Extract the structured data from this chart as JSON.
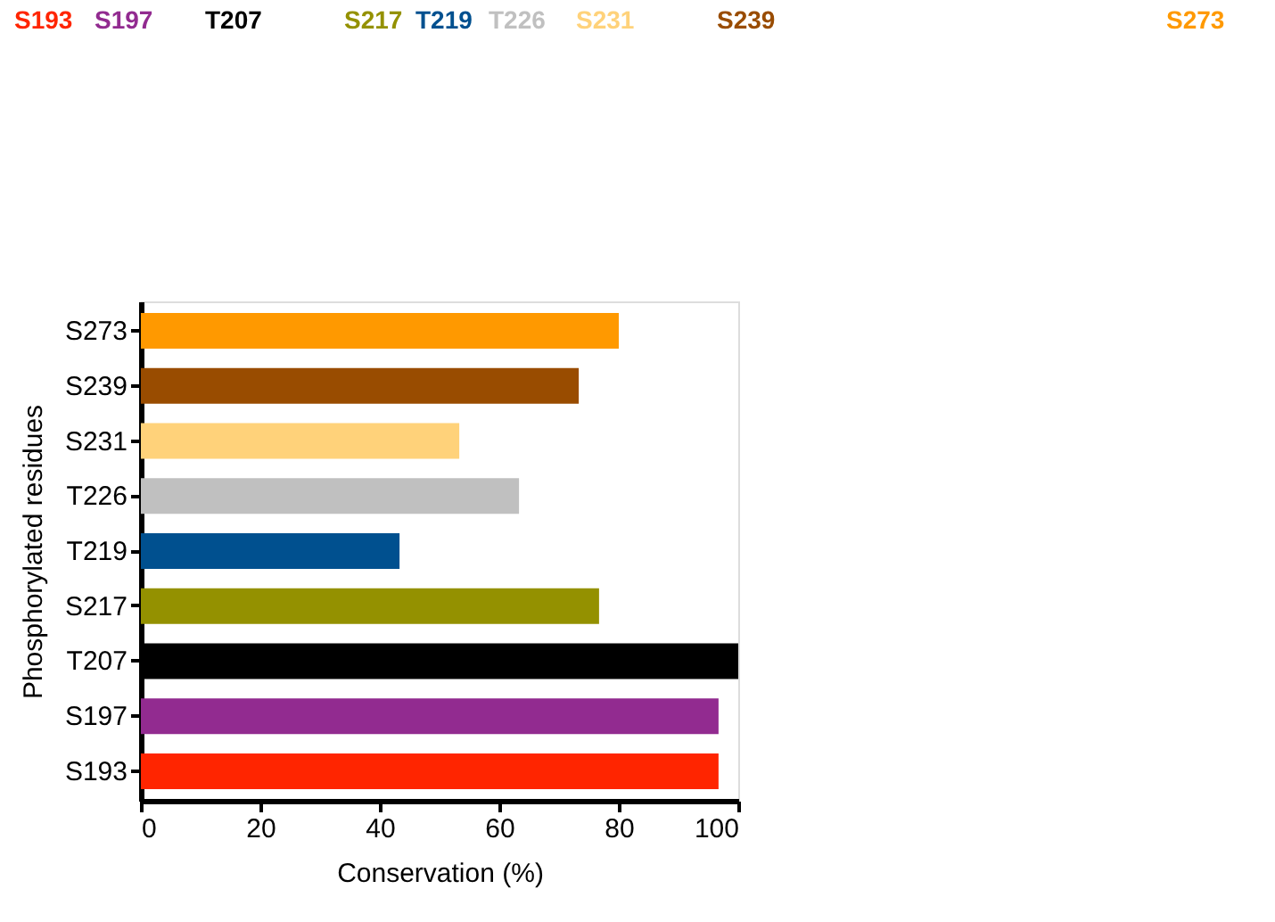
{
  "chart_data": {
    "type": "bar",
    "orientation": "horizontal",
    "xlabel": "Conservation (%)",
    "ylabel": "Phosphorylated residues",
    "categories": [
      "S273",
      "S239",
      "S231",
      "T226",
      "T219",
      "S217",
      "T207",
      "S197",
      "S193"
    ],
    "values": [
      80,
      73.3,
      53.3,
      63.3,
      43.3,
      76.7,
      100,
      96.7,
      96.7
    ],
    "colors": [
      "#ff9900",
      "#994c00",
      "#ffd27a",
      "#c0c0c0",
      "#00508f",
      "#949100",
      "#000000",
      "#922b90",
      "#ff2500"
    ],
    "xlim": [
      0,
      100
    ],
    "xticks": [
      0,
      20,
      40,
      60,
      80,
      100
    ],
    "grid": false,
    "annotations": [
      "S193",
      "S197",
      "T207",
      "S217",
      "T219",
      "T226",
      "S231",
      "S239",
      "S273"
    ]
  }
}
